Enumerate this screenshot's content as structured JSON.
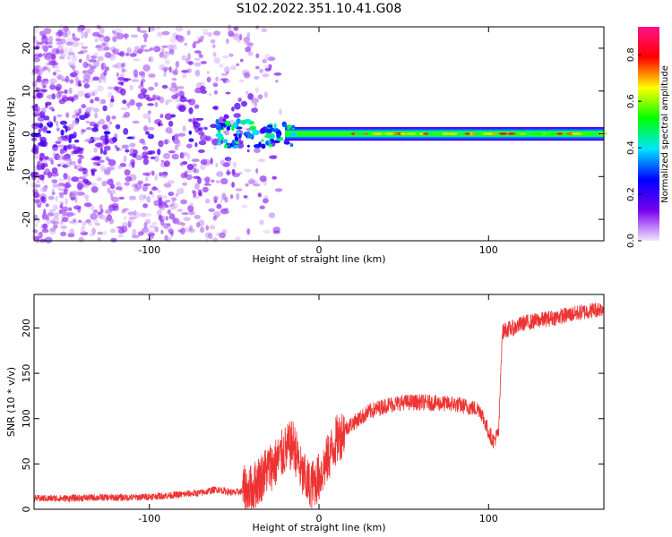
{
  "title": "S102.2022.351.10.41.G08",
  "chart_data": [
    {
      "type": "heatmap",
      "title": "S102.2022.351.10.41.G08",
      "xlabel": "Height of straight line (km)",
      "ylabel": "Frequency (Hz)",
      "xlim": [
        -168,
        168
      ],
      "ylim": [
        -25,
        25
      ],
      "x_ticks": [
        -100,
        0,
        100
      ],
      "x_tick_labels": [
        "-100",
        "0",
        "100"
      ],
      "y_ticks": [
        -20,
        -10,
        0,
        10,
        20
      ],
      "y_tick_labels": [
        "-20",
        "-10",
        "0",
        "10",
        "20"
      ],
      "colorbar": {
        "label": "Normalized spectral amplitude",
        "range": [
          0,
          0.92
        ],
        "ticks": [
          0.0,
          0.2,
          0.4,
          0.6,
          0.8
        ],
        "tick_labels": [
          "0.0",
          "0.2",
          "0.4",
          "0.6",
          "0.8"
        ],
        "colormap": [
          "#f4e6ff",
          "#7700ee",
          "#0000ff",
          "#00e5ff",
          "#00ff00",
          "#ffff00",
          "#ff0000",
          "#ff1188"
        ]
      },
      "band": {
        "description_free": true,
        "center_freq_hz": 0,
        "half_width_hz": 1.2,
        "x_start": -20,
        "x_end": 168,
        "peak_amplitude": 0.85,
        "typical_amplitude": 0.45
      },
      "scatter_region": {
        "x_start": -168,
        "x_end": -35,
        "amplitude_range": [
          0.05,
          0.25
        ]
      }
    },
    {
      "type": "line",
      "xlabel": "Height of straight line (km)",
      "ylabel": "SNR (10 * v/v)",
      "xlim": [
        -168,
        168
      ],
      "ylim": [
        0,
        237
      ],
      "x_ticks": [
        -100,
        0,
        100
      ],
      "x_tick_labels": [
        "-100",
        "0",
        "100"
      ],
      "y_ticks": [
        0,
        50,
        100,
        150,
        200
      ],
      "y_tick_labels": [
        "0",
        "50",
        "100",
        "150",
        "200"
      ],
      "series_color": "#ee3333",
      "x": [
        -168,
        -150,
        -130,
        -110,
        -90,
        -70,
        -60,
        -50,
        -40,
        -30,
        -25,
        -20,
        -15,
        -10,
        -5,
        0,
        5,
        10,
        15,
        20,
        30,
        40,
        50,
        60,
        70,
        80,
        90,
        95,
        100,
        103,
        106,
        108,
        110,
        115,
        120,
        140,
        168
      ],
      "values": [
        12,
        12,
        13,
        13,
        15,
        18,
        22,
        18,
        22,
        45,
        52,
        65,
        72,
        38,
        25,
        35,
        55,
        75,
        88,
        95,
        108,
        115,
        118,
        118,
        117,
        116,
        112,
        110,
        85,
        75,
        85,
        195,
        198,
        200,
        205,
        212,
        222
      ]
    }
  ]
}
